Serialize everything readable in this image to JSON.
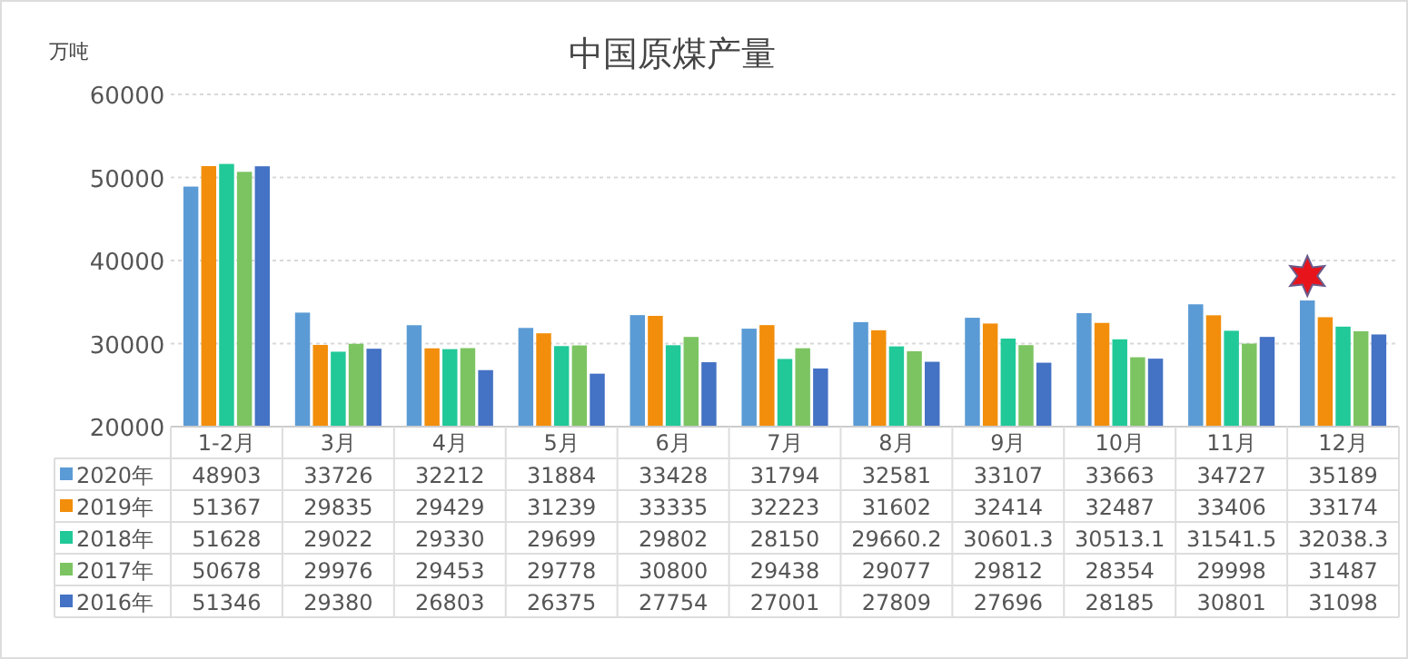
{
  "chart_data": {
    "type": "bar",
    "title": "中国原煤产量",
    "ylabel": "万吨",
    "categories": [
      "1-2月",
      "3月",
      "4月",
      "5月",
      "6月",
      "7月",
      "8月",
      "9月",
      "10月",
      "11月",
      "12月"
    ],
    "series": [
      {
        "name": "2020年",
        "color": "#5b9bd5",
        "values": [
          48903,
          33726,
          32212,
          31884,
          33428,
          31794,
          32581,
          33107,
          33663,
          34727,
          35189
        ]
      },
      {
        "name": "2019年",
        "color": "#f28e0b",
        "values": [
          51367,
          29835,
          29429,
          31239,
          33335,
          32223,
          31602,
          32414,
          32487,
          33406,
          33174
        ]
      },
      {
        "name": "2018年",
        "color": "#21c998",
        "values": [
          51628,
          29022,
          29330,
          29699,
          29802,
          28150,
          29660.2,
          30601.3,
          30513.1,
          31541.5,
          32038.3
        ]
      },
      {
        "name": "2017年",
        "color": "#7cc462",
        "values": [
          50678,
          29976,
          29453,
          29778,
          30800,
          29438,
          29077,
          29812,
          28354,
          29998,
          31487
        ]
      },
      {
        "name": "2016年",
        "color": "#4472c4",
        "values": [
          51346,
          29380,
          26803,
          26375,
          27754,
          27001,
          27809,
          27696,
          28185,
          30801,
          31098
        ]
      }
    ],
    "ylim": [
      20000,
      60000
    ],
    "yticks": [
      20000,
      30000,
      40000,
      50000,
      60000
    ],
    "grid": "y",
    "legend": "bottom",
    "data_labels": true
  }
}
